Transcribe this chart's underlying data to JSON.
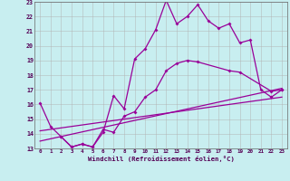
{
  "xlabel": "Windchill (Refroidissement éolien,°C)",
  "background_color": "#c8eef0",
  "grid_color": "#b0b0b0",
  "line_color": "#990099",
  "xlim": [
    -0.5,
    23.5
  ],
  "ylim": [
    13,
    23
  ],
  "yticks": [
    13,
    14,
    15,
    16,
    17,
    18,
    19,
    20,
    21,
    22,
    23
  ],
  "xticks": [
    0,
    1,
    2,
    3,
    4,
    5,
    6,
    7,
    8,
    9,
    10,
    11,
    12,
    13,
    14,
    15,
    16,
    17,
    18,
    19,
    20,
    21,
    22,
    23
  ],
  "line1_x": [
    0,
    1,
    2,
    3,
    4,
    5,
    6,
    7,
    8,
    9,
    10,
    11,
    12,
    13,
    14,
    15,
    16,
    17,
    18,
    19,
    20,
    21,
    22,
    23
  ],
  "line1_y": [
    16.1,
    14.5,
    13.8,
    13.1,
    13.3,
    13.1,
    14.1,
    16.6,
    15.7,
    19.1,
    19.8,
    21.1,
    23.1,
    21.5,
    22.0,
    22.8,
    21.7,
    21.2,
    21.5,
    20.2,
    20.4,
    17.0,
    16.5,
    17.0
  ],
  "line2_x": [
    0,
    23
  ],
  "line2_y": [
    13.5,
    17.1
  ],
  "line3_x": [
    0,
    23
  ],
  "line3_y": [
    14.2,
    16.5
  ],
  "line4_x": [
    2,
    3,
    4,
    5,
    6,
    7,
    8,
    9,
    10,
    11,
    12,
    13,
    14,
    15,
    18,
    19,
    22,
    23
  ],
  "line4_y": [
    13.8,
    13.1,
    13.3,
    13.1,
    14.3,
    14.1,
    15.2,
    15.5,
    16.5,
    17.0,
    18.3,
    18.8,
    19.0,
    18.9,
    18.3,
    18.2,
    16.9,
    17.0
  ]
}
